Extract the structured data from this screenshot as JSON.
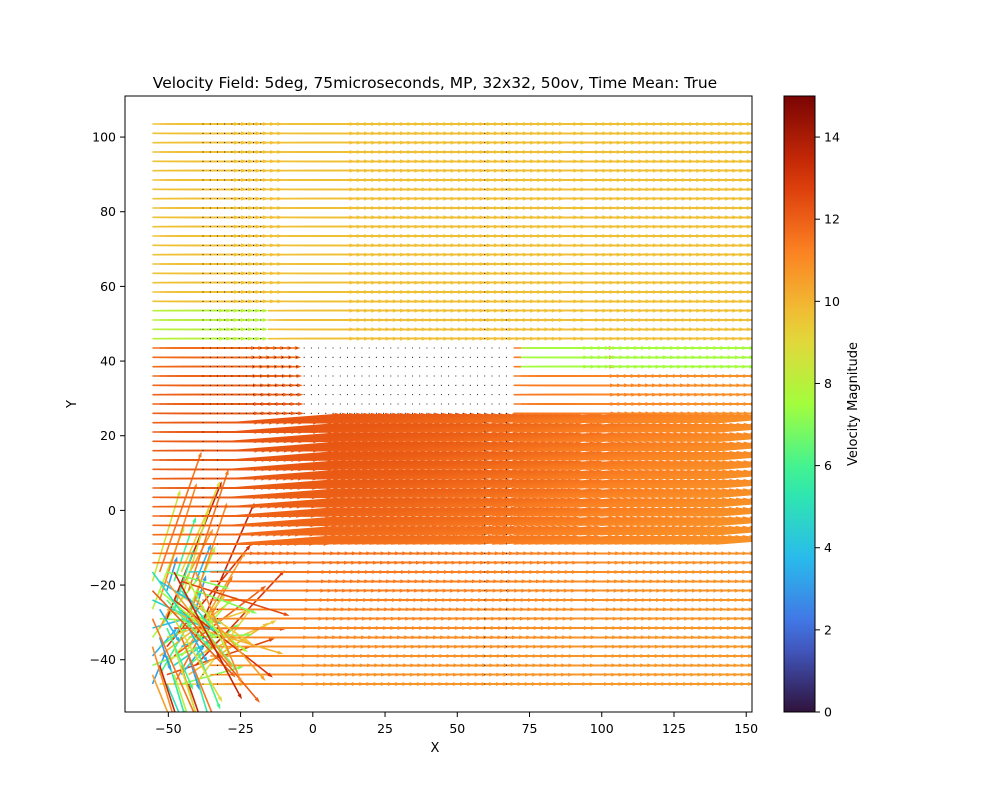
{
  "chart_data": {
    "type": "quiver",
    "title": "Velocity Field: 5deg, 75microseconds, MP, 32x32, 50ov, Time Mean: True",
    "xlabel": "X",
    "ylabel": "Y",
    "xlim": [
      -65,
      152
    ],
    "ylim": [
      -54,
      111
    ],
    "xticks": [
      -50,
      -25,
      0,
      25,
      50,
      75,
      100,
      125,
      150
    ],
    "yticks": [
      -40,
      -20,
      0,
      20,
      40,
      60,
      80,
      100
    ],
    "grid": false,
    "colorbar": {
      "label": "Velocity Magnitude",
      "range": [
        0,
        15
      ],
      "ticks": [
        0,
        2,
        4,
        6,
        8,
        10,
        12,
        14
      ],
      "colormap": "turbo"
    },
    "field": {
      "x_range": [
        -55.5,
        140.5
      ],
      "y_range": [
        -46.5,
        103.5
      ],
      "grid_step": 2.5,
      "regions": [
        {
          "description": "upper-left vertical band",
          "x": [
            -40,
            -18
          ],
          "y": [
            46,
            103.5
          ],
          "typical_magnitude": 0
        },
        {
          "description": "horizontal band (no data)",
          "x": [
            -40,
            68
          ],
          "y": [
            24,
            44
          ],
          "typical_magnitude": 0
        },
        {
          "description": "upper flow",
          "x": [
            -55,
            140
          ],
          "y": [
            46,
            103.5
          ],
          "typical_magnitude": 9.8
        },
        {
          "description": "lower core flow",
          "x": [
            -35,
            140
          ],
          "y": [
            -46,
            24
          ],
          "typical_magnitude": 11.5
        },
        {
          "description": "shear layer",
          "x": [
            70,
            140
          ],
          "y": [
            38,
            44
          ],
          "typical_magnitude": 7.5
        }
      ],
      "vector_columns_zero": [
        -37,
        -33,
        60,
        68,
        141
      ],
      "peak_magnitude": 15
    }
  }
}
